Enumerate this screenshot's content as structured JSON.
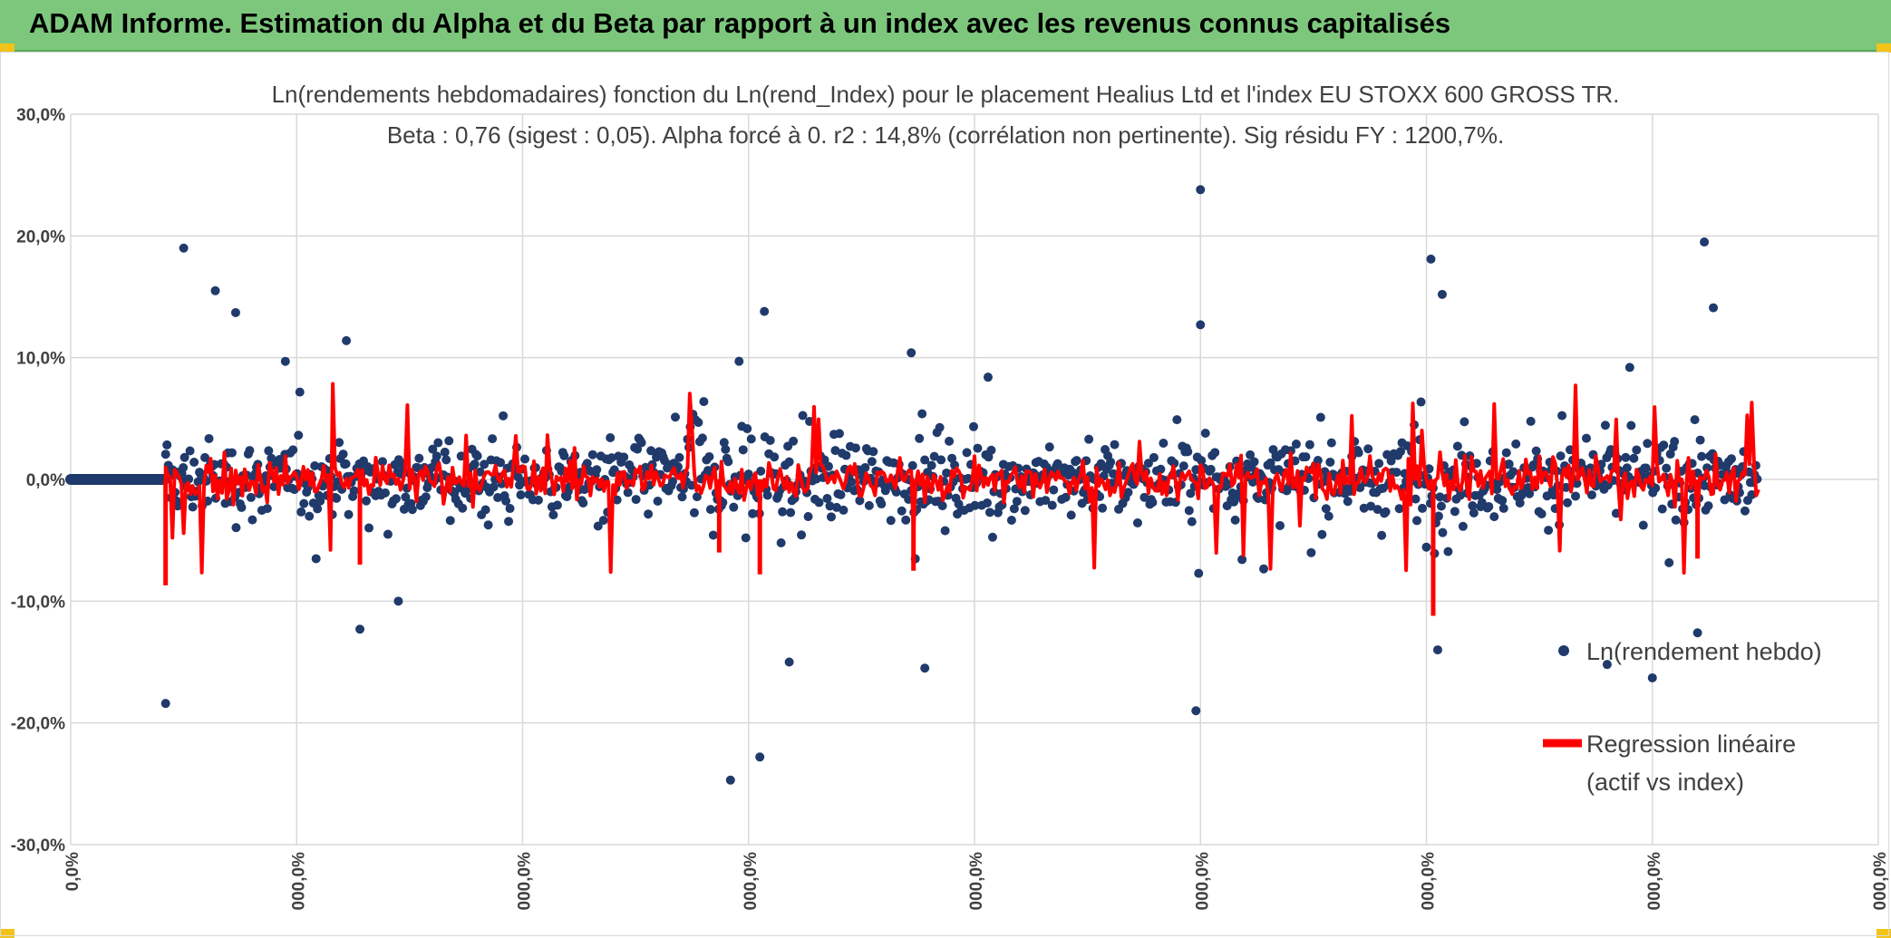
{
  "header": {
    "title": "ADAM Informe. Estimation du Alpha et du Beta par rapport à un index avec les revenus connus capitalisés"
  },
  "colors": {
    "banner": "#7dc77d",
    "scatter": "#1f3a6b",
    "regression": "#ff0000",
    "grid": "#d9d9d9",
    "corner": "#f2c318"
  },
  "chart_data": {
    "type": "scatter",
    "title": "Ln(rendements hebdomadaires) fonction du Ln(rend_Index) pour le placement Healius Ltd et l'index EU STOXX 600 GROSS TR.",
    "subtitle": "Beta : 0,76 (sigest : 0,05). Alpha forcé à 0. r2 : 14,8% (corrélation non pertinente). Sig résidu FY : 1200,7%.",
    "xlabel": "",
    "ylabel": "",
    "ylim": [
      -0.3,
      0.3
    ],
    "grid": true,
    "y_ticks": [
      "30,0%",
      "20,0%",
      "10,0%",
      "0,0%",
      "-10,0%",
      "-20,0%",
      "-30,0%"
    ],
    "x_ticks": [
      "0,0%",
      "000,0%",
      "000,0%",
      "000,0%",
      "000,0%",
      "000,0%",
      "000,0%",
      "000,0%",
      "000,0%"
    ],
    "legend_position": "right",
    "series": [
      {
        "name": "Ln(rendement hebdo)",
        "type": "scatter",
        "points_note": "dense weekly scatter",
        "outliers": [
          [
            0.42,
            -0.184
          ],
          [
            0.5,
            0.19
          ],
          [
            0.64,
            0.155
          ],
          [
            0.73,
            0.137
          ],
          [
            0.95,
            0.097
          ],
          [
            1.22,
            0.114
          ],
          [
            1.28,
            -0.123
          ],
          [
            1.45,
            -0.1
          ],
          [
            2.92,
            -0.247
          ],
          [
            3.05,
            -0.228
          ],
          [
            3.07,
            0.138
          ],
          [
            3.18,
            -0.15
          ],
          [
            3.72,
            0.104
          ],
          [
            3.78,
            -0.155
          ],
          [
            4.06,
            0.084
          ],
          [
            5.0,
            0.238
          ],
          [
            5.0,
            0.127
          ],
          [
            4.98,
            -0.19
          ],
          [
            6.02,
            0.181
          ],
          [
            6.07,
            0.152
          ],
          [
            6.05,
            -0.14
          ],
          [
            6.9,
            0.092
          ],
          [
            7.23,
            0.195
          ],
          [
            7.27,
            0.141
          ],
          [
            7.0,
            -0.163
          ],
          [
            7.2,
            -0.126
          ],
          [
            6.8,
            -0.152
          ]
        ]
      },
      {
        "name": "Regression linéaire",
        "name_line2": "(actif vs index)",
        "type": "line"
      }
    ]
  }
}
